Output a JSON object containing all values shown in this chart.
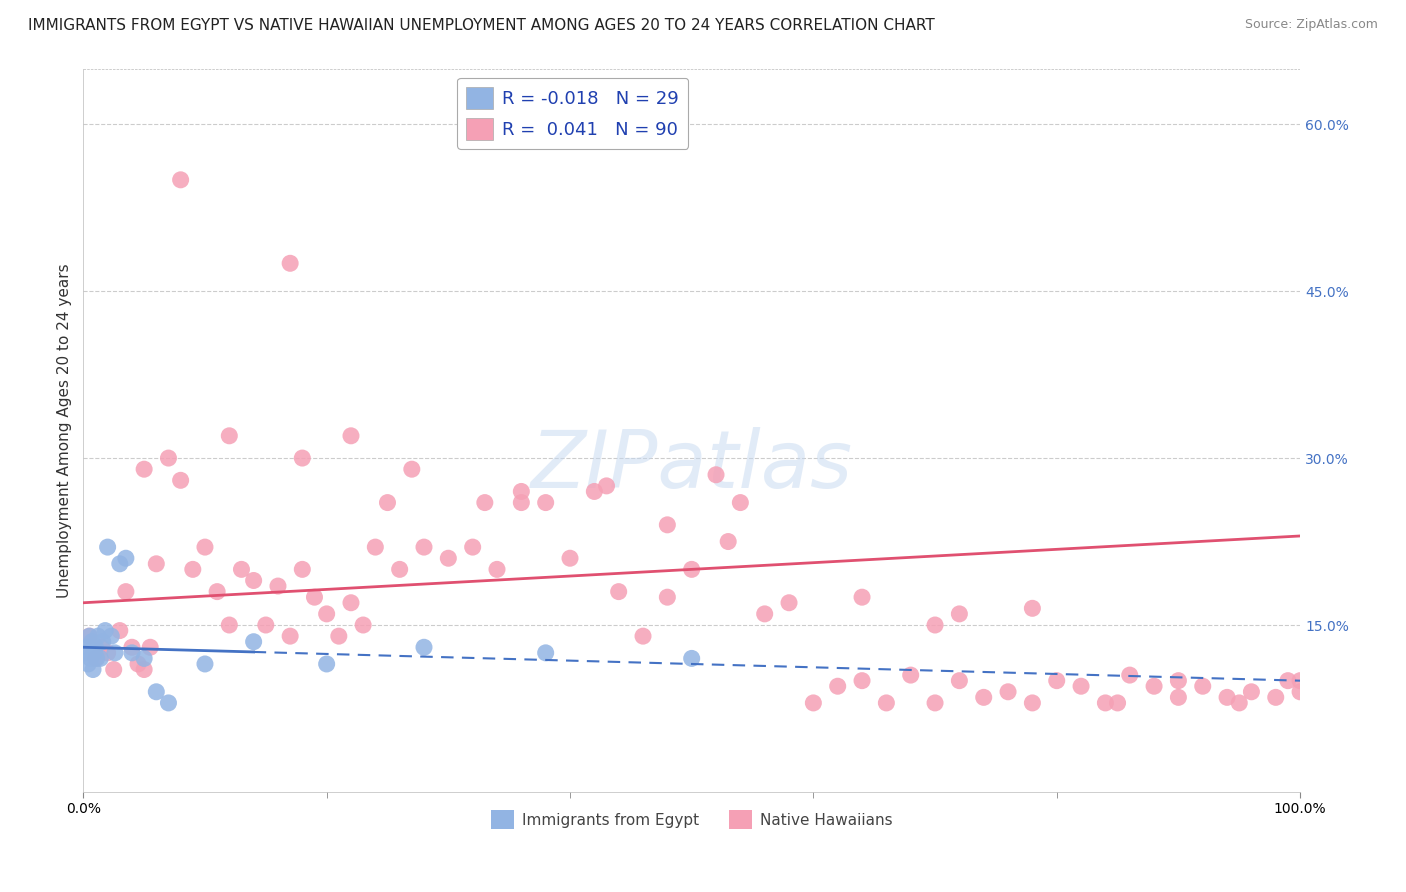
{
  "title": "IMMIGRANTS FROM EGYPT VS NATIVE HAWAIIAN UNEMPLOYMENT AMONG AGES 20 TO 24 YEARS CORRELATION CHART",
  "source": "Source: ZipAtlas.com",
  "ylabel": "Unemployment Among Ages 20 to 24 years",
  "xlim": [
    0,
    100
  ],
  "ylim": [
    0,
    65
  ],
  "legend_R1": "-0.018",
  "legend_N1": "29",
  "legend_R2": "0.041",
  "legend_N2": "90",
  "legend_label1": "Immigrants from Egypt",
  "legend_label2": "Native Hawaiians",
  "blue_color": "#92b4e3",
  "pink_color": "#f5a0b5",
  "blue_line_color": "#4472c4",
  "pink_line_color": "#e05070",
  "grid_color": "#cccccc",
  "background_color": "#ffffff",
  "title_fontsize": 11,
  "source_fontsize": 9,
  "axis_label_fontsize": 11,
  "tick_fontsize": 10,
  "right_tick_color": "#4472c4",
  "blue_x": [
    0.2,
    0.3,
    0.4,
    0.5,
    0.6,
    0.7,
    0.8,
    0.9,
    1.0,
    1.1,
    1.2,
    1.4,
    1.6,
    1.8,
    2.0,
    2.3,
    2.6,
    3.0,
    3.5,
    4.0,
    5.0,
    6.0,
    7.0,
    10.0,
    14.0,
    20.0,
    28.0,
    38.0,
    50.0
  ],
  "blue_y": [
    12.5,
    13.0,
    11.5,
    14.0,
    12.0,
    13.5,
    11.0,
    12.5,
    13.0,
    12.0,
    14.0,
    12.0,
    13.5,
    14.5,
    22.0,
    14.0,
    12.5,
    20.5,
    21.0,
    12.5,
    12.0,
    9.0,
    8.0,
    11.5,
    13.5,
    11.5,
    13.0,
    12.5,
    12.0
  ],
  "pink_x": [
    0.5,
    1.0,
    1.5,
    2.0,
    2.5,
    3.0,
    3.5,
    4.0,
    4.5,
    5.0,
    5.5,
    6.0,
    7.0,
    8.0,
    9.0,
    10.0,
    11.0,
    12.0,
    13.0,
    14.0,
    15.0,
    16.0,
    17.0,
    18.0,
    19.0,
    20.0,
    21.0,
    22.0,
    23.0,
    24.0,
    25.0,
    26.0,
    28.0,
    30.0,
    32.0,
    34.0,
    36.0,
    38.0,
    40.0,
    42.0,
    44.0,
    46.0,
    48.0,
    50.0,
    52.0,
    54.0,
    56.0,
    58.0,
    60.0,
    62.0,
    64.0,
    66.0,
    68.0,
    70.0,
    72.0,
    74.0,
    76.0,
    78.0,
    80.0,
    82.0,
    84.0,
    86.0,
    88.0,
    90.0,
    92.0,
    94.0,
    96.0,
    98.0,
    99.0,
    100.0,
    8.0,
    17.0,
    22.0,
    27.0,
    33.0,
    36.0,
    43.0,
    48.0,
    53.0,
    64.0,
    72.0,
    78.0,
    85.0,
    90.0,
    95.0,
    100.0,
    5.0,
    12.0,
    18.0,
    70.0
  ],
  "pink_y": [
    14.0,
    12.0,
    13.0,
    12.5,
    11.0,
    14.5,
    18.0,
    13.0,
    11.5,
    11.0,
    13.0,
    20.5,
    30.0,
    28.0,
    20.0,
    22.0,
    18.0,
    15.0,
    20.0,
    19.0,
    15.0,
    18.5,
    14.0,
    20.0,
    17.5,
    16.0,
    14.0,
    17.0,
    15.0,
    22.0,
    26.0,
    20.0,
    22.0,
    21.0,
    22.0,
    20.0,
    26.0,
    26.0,
    21.0,
    27.0,
    18.0,
    14.0,
    17.5,
    20.0,
    28.5,
    26.0,
    16.0,
    17.0,
    8.0,
    9.5,
    10.0,
    8.0,
    10.5,
    8.0,
    10.0,
    8.5,
    9.0,
    8.0,
    10.0,
    9.5,
    8.0,
    10.5,
    9.5,
    10.0,
    9.5,
    8.5,
    9.0,
    8.5,
    10.0,
    9.0,
    55.0,
    47.5,
    32.0,
    29.0,
    26.0,
    27.0,
    27.5,
    24.0,
    22.5,
    17.5,
    16.0,
    16.5,
    8.0,
    8.5,
    8.0,
    10.0,
    29.0,
    32.0,
    30.0,
    15.0
  ],
  "pink_trendline_x0": 0,
  "pink_trendline_y0": 17.0,
  "pink_trendline_x1": 100,
  "pink_trendline_y1": 23.0,
  "blue_trendline_x0": 0,
  "blue_trendline_y0": 13.0,
  "blue_trendline_x1": 100,
  "blue_trendline_y1": 10.0,
  "blue_solid_end": 14,
  "watermark_text": "ZIPatlas",
  "watermark_color": "#c5d8f0",
  "watermark_alpha": 0.5
}
